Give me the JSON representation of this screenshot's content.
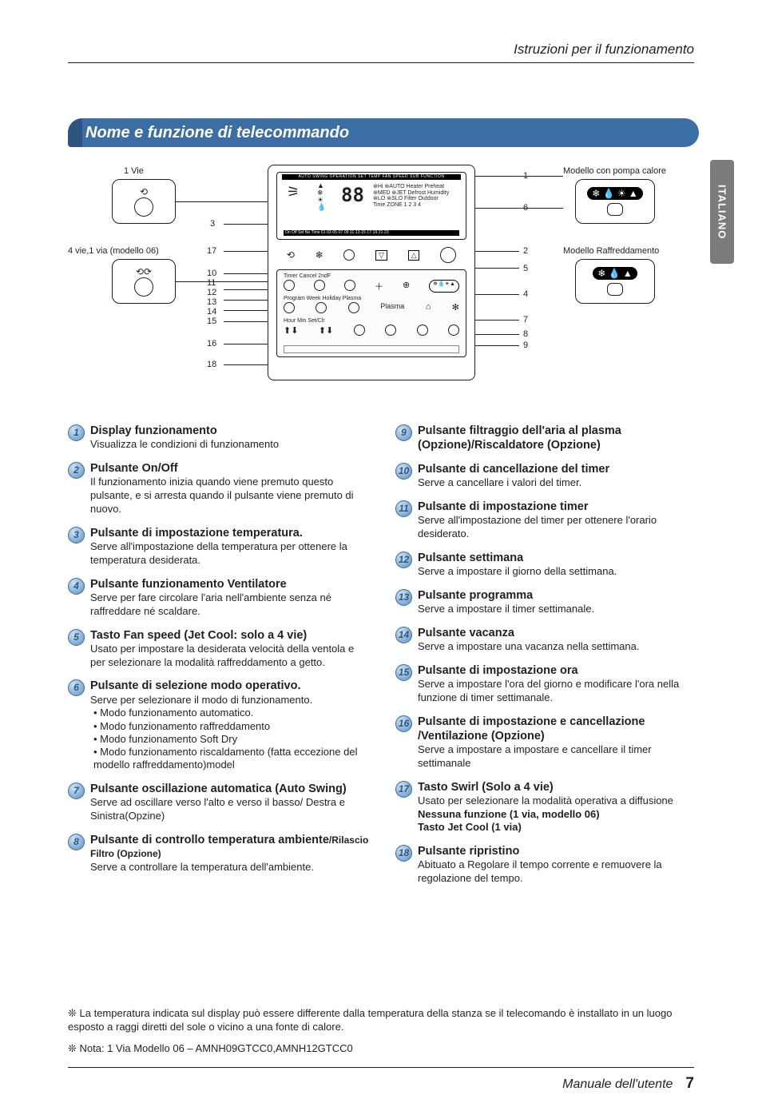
{
  "header": {
    "breadcrumb": "Istruzioni per il funzionamento"
  },
  "side_tab": "ITALIANO",
  "title": "Nome e funzione di telecommando",
  "diagram": {
    "labels": {
      "one_way": "1 Vie",
      "four_way": "4 vie,1 via (modello 06)",
      "heat_pump": "Modello con pompa calore",
      "cooling": "Modello Raffreddamento"
    },
    "left_nums": [
      "3",
      "17",
      "10",
      "11",
      "12",
      "13",
      "14",
      "15",
      "16",
      "18"
    ],
    "right_nums": [
      "1",
      "6",
      "2",
      "5",
      "4",
      "7",
      "8",
      "9"
    ],
    "icons_hp": "❄ 💧 ☀ ▲",
    "icons_cool": "❄ 💧 ▲",
    "lcd_top_labels": "AUTO SWING  OPERATION  SET TEMP  FAN SPEED  SUB FUNCTION",
    "lcd_mid": "88",
    "lcd_row_labels": "Timer  Cancel  2ndF",
    "lcd_row2_labels": "Program  Week  Holiday  Plasma",
    "lcd_row3_labels": "Hour  Min  Set/Clr",
    "lcd_timer_row": "On Off  Set No  Time  01·03·05·07·09·11·13·15·17·19·21·23"
  },
  "items_left": [
    {
      "n": "1",
      "title": "Display funzionamento",
      "desc": "Visualizza le condizioni di funzionamento"
    },
    {
      "n": "2",
      "title": "Pulsante On/Off",
      "desc": "Il funzionamento inizia quando viene premuto questo pulsante, e si arresta quando il pulsante viene premuto di nuovo."
    },
    {
      "n": "3",
      "title": "Pulsante di impostazione temperatura.",
      "desc": "Serve all'impostazione della temperatura per ottenere la temperatura desiderata."
    },
    {
      "n": "4",
      "title": "Pulsante funzionamento Ventilatore",
      "desc": "Serve per fare circolare l'aria nell'ambiente senza né raffreddare né scaldare."
    },
    {
      "n": "5",
      "title": "Tasto Fan speed (Jet Cool: solo a 4 vie)",
      "desc": "Usato per impostare la desiderata velocità della ventola e per selezionare la modalità raffreddamento a getto."
    },
    {
      "n": "6",
      "title": "Pulsante di selezione modo operativo.",
      "desc": "Serve per selezionare il modo di funzionamento.",
      "bullets": [
        "• Modo funzionamento automatico.",
        "• Modo funzionamento raffreddamento",
        "• Modo funzionamento Soft Dry",
        "• Modo funzionamento riscaldamento (fatta eccezione del modello raffreddamento)model"
      ]
    },
    {
      "n": "7",
      "title": "Pulsante oscillazione automatica (Auto Swing)",
      "desc": "Serve ad oscillare verso l'alto e verso il basso/ Destra e Sinistra(Opzine)"
    },
    {
      "n": "8",
      "title": "Pulsante di controllo temperatura ambiente",
      "title2": "/Rilascio Filtro (Opzione)",
      "desc": "Serve a controllare la temperatura dell'ambiente."
    }
  ],
  "items_right": [
    {
      "n": "9",
      "title": "Pulsante filtraggio dell'aria al plasma (Opzione)/Riscaldatore (Opzione)",
      "desc": ""
    },
    {
      "n": "10",
      "title": "Pulsante di cancellazione del timer",
      "desc": "Serve a cancellare i valori del timer."
    },
    {
      "n": "11",
      "title": "Pulsante di impostazione timer",
      "desc": "Serve all'impostazione del timer per ottenere l'orario desiderato."
    },
    {
      "n": "12",
      "title": "Pulsante settimana",
      "desc": "Serve a impostare il giorno della settimana."
    },
    {
      "n": "13",
      "title": "Pulsante programma",
      "desc": "Serve a impostare il timer settimanale."
    },
    {
      "n": "14",
      "title": "Pulsante vacanza",
      "desc": "Serve a impostare una vacanza nella settimana."
    },
    {
      "n": "15",
      "title": "Pulsante di impostazione ora",
      "desc": "Serve a impostare l'ora del giorno e modificare l'ora nella funzione di timer settimanale."
    },
    {
      "n": "16",
      "title": "Pulsante di impostazione e cancellazione /Ventilazione (Opzione)",
      "desc": "Serve a impostare a impostare e cancellare il timer settimanale"
    },
    {
      "n": "17",
      "title": "Tasto Swirl (Solo a 4 vie)",
      "desc": "Usato per selezionare la modalità operativa a diffusione",
      "extra_bold": "Nessuna funzione (1 via, modello 06)\nTasto Jet Cool (1 via)"
    },
    {
      "n": "18",
      "title": "Pulsante ripristino",
      "desc": "Abituato a Regolare il tempo corrente e remuovere la regolazione del tempo."
    }
  ],
  "footnotes": {
    "line1": "❊ La temperatura indicata sul display può essere differente dalla temperatura della stanza se il telecomando è installato in un luogo esposto a raggi diretti del sole o vicino a una fonte di calore.",
    "line2": "❊ Nota: 1 Via Modello 06 – AMNH09GTCC0,AMNH12GTCC0"
  },
  "footer": {
    "text": "Manuale dell'utente",
    "page": "7"
  },
  "colors": {
    "title_bg": "#3a6ea5",
    "badge_border": "#3a6ea5",
    "text": "#231f20"
  }
}
